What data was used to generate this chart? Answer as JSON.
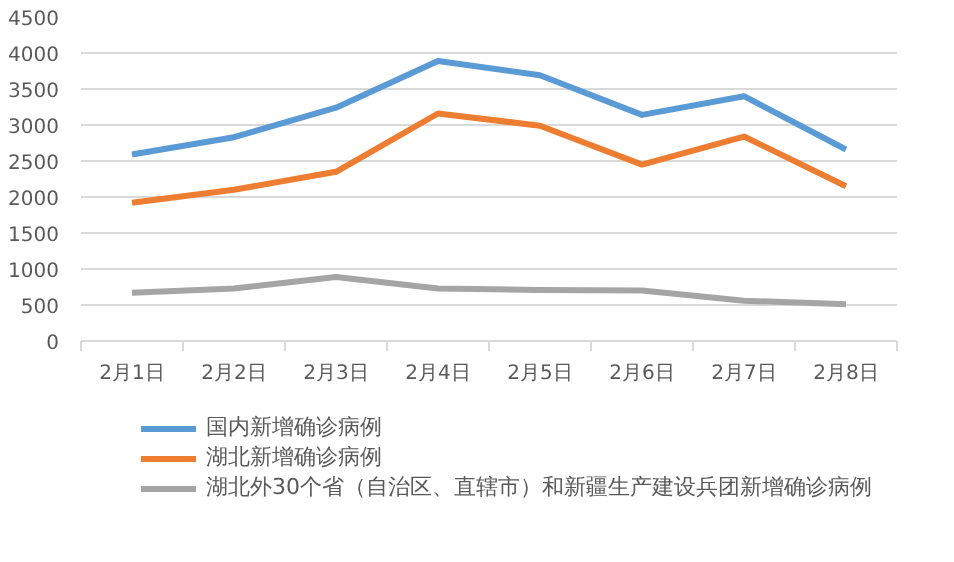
{
  "chart_data": {
    "type": "line",
    "categories": [
      "2月1日",
      "2月2日",
      "2月3日",
      "2月4日",
      "2月5日",
      "2月6日",
      "2月7日",
      "2月8日"
    ],
    "series": [
      {
        "name": "国内新增确诊病例",
        "color": "#5b9bd5",
        "values": [
          2590,
          2830,
          3240,
          3890,
          3690,
          3140,
          3400,
          2660
        ]
      },
      {
        "name": "湖北新增确诊病例",
        "color": "#ed7d31",
        "values": [
          1920,
          2100,
          2350,
          3160,
          2990,
          2450,
          2840,
          2150
        ]
      },
      {
        "name": "湖北外30个省（自治区、直辖市）和新疆生产建设兵团新增确诊病例",
        "color": "#a5a5a5",
        "values": [
          670,
          730,
          890,
          730,
          710,
          700,
          560,
          510
        ]
      }
    ],
    "ylim": [
      0,
      4500
    ],
    "yticks": [
      0,
      500,
      1000,
      1500,
      2000,
      2500,
      3000,
      3500,
      4000,
      4500
    ],
    "grid": "y",
    "legend": "bottom",
    "marker": "none",
    "line_style": "solid"
  }
}
